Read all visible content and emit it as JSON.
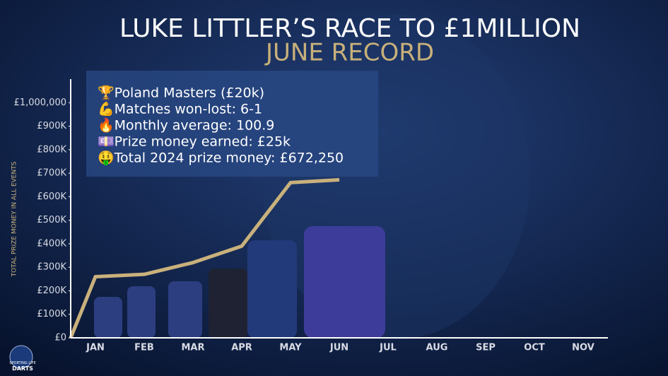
{
  "chart_data": {
    "type": "line",
    "title": "LUKE LITTLER’S RACE TO £1MILLION",
    "subtitle": "JUNE RECORD",
    "y_label": "TOTAL PRIZE MONEY IN ALL EVENTS",
    "categories": [
      null,
      "JAN",
      "FEB",
      "MAR",
      "APR",
      "MAY",
      "JUN",
      "JUL",
      "AUG",
      "SEP",
      "OCT",
      "NOV"
    ],
    "values": [
      0,
      260000,
      270000,
      320000,
      390000,
      660000,
      672250,
      null,
      null,
      null,
      null,
      null
    ],
    "color": "#c9b17c",
    "ylim": [
      0,
      1100000
    ],
    "yticks": [
      {
        "value": 0,
        "label": "£0"
      },
      {
        "value": 100000,
        "label": "£100K"
      },
      {
        "value": 200000,
        "label": "£200K"
      },
      {
        "value": 300000,
        "label": "£300K"
      },
      {
        "value": 400000,
        "label": "£400K"
      },
      {
        "value": 500000,
        "label": "£500K"
      },
      {
        "value": 600000,
        "label": "£600K"
      },
      {
        "value": 700000,
        "label": "£700K"
      },
      {
        "value": 800000,
        "label": "£800K"
      },
      {
        "value": 900000,
        "label": "£900K"
      },
      {
        "value": 1000000,
        "label": "£1,000,000"
      }
    ],
    "info": [
      "🏆Poland Masters (£20k)",
      "💪Matches won-lost: 6-1",
      "🔥Monthly average: 100.9",
      "💷Prize money earned: £25k",
      "🤑Total 2024 prize money: £672,250"
    ],
    "logo": [
      "SPORTING LIFE",
      "DARTS"
    ]
  }
}
